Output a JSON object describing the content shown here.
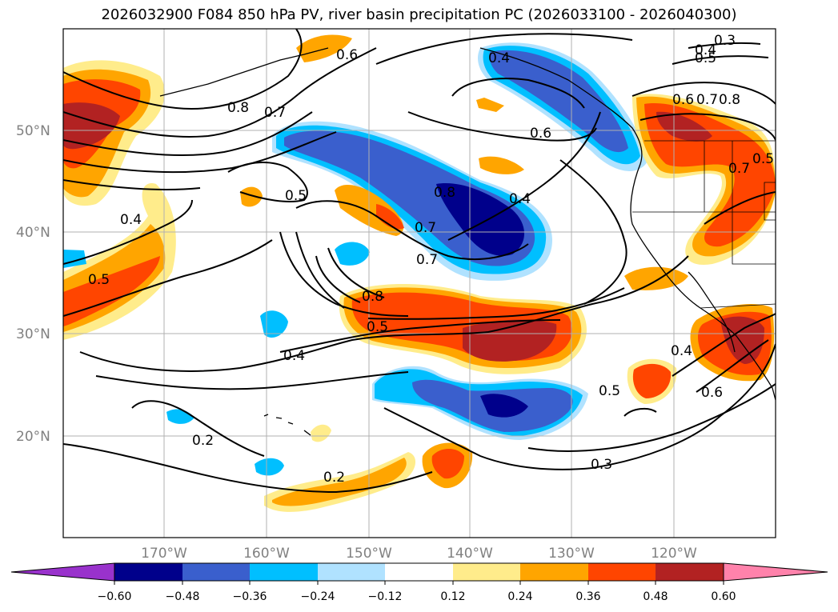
{
  "title": "2026032900 F084 850 hPa PV, river basin precipitation PC (2026033100 - 2026040300)",
  "map": {
    "lat_labels": [
      "50°N",
      "40°N",
      "30°N",
      "20°N"
    ],
    "lon_labels": [
      "170°W",
      "160°W",
      "150°W",
      "140°W",
      "130°W",
      "120°W"
    ],
    "gridline_color": "#b0b0b0"
  },
  "contour_labels": [
    {
      "text": "0.6"
    },
    {
      "text": "0.4"
    },
    {
      "text": "0.3"
    },
    {
      "text": "0.4"
    },
    {
      "text": "0.5"
    },
    {
      "text": "0.8"
    },
    {
      "text": "0.7"
    },
    {
      "text": "0.6"
    },
    {
      "text": "0.7"
    },
    {
      "text": "0.8"
    },
    {
      "text": "0.5"
    },
    {
      "text": "0.6"
    },
    {
      "text": "0.4"
    },
    {
      "text": "0.4"
    },
    {
      "text": "0.7"
    },
    {
      "text": "0.7"
    },
    {
      "text": "0.5"
    },
    {
      "text": "0.8"
    },
    {
      "text": "0.5"
    },
    {
      "text": "0.4"
    },
    {
      "text": "0.4"
    },
    {
      "text": "0.5"
    },
    {
      "text": "0.6"
    },
    {
      "text": "0.3"
    },
    {
      "text": "0.2"
    },
    {
      "text": "0.2"
    },
    {
      "text": "0.8"
    },
    {
      "text": "0.7"
    },
    {
      "text": "0.5"
    }
  ],
  "colorbar": {
    "ticks": [
      "−0.60",
      "−0.48",
      "−0.36",
      "−0.24",
      "−0.12",
      "0.12",
      "0.24",
      "0.36",
      "0.48",
      "0.60"
    ],
    "colors": [
      "#9932cc",
      "#00008b",
      "#3a5fcd",
      "#00bfff",
      "#b0e2ff",
      "#ffffff",
      "#ffec8b",
      "#ffa500",
      "#ff4500",
      "#b22222",
      "#ff82ab"
    ]
  }
}
